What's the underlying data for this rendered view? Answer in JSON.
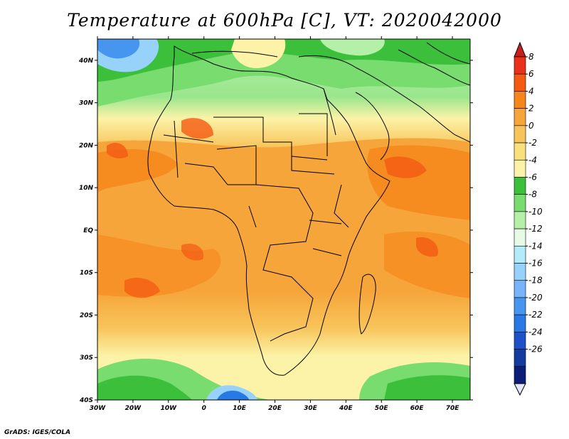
{
  "title": "Temperature at 600hPa [C], VT: 2020042000",
  "credit": "GrADS: IGES/COLA",
  "map": {
    "lon_range": [
      -30,
      75
    ],
    "lat_range": [
      -40,
      45
    ],
    "lon_ticks": [
      {
        "value": -30,
        "label": "30W"
      },
      {
        "value": -20,
        "label": "20W"
      },
      {
        "value": -10,
        "label": "10W"
      },
      {
        "value": 0,
        "label": "0"
      },
      {
        "value": 10,
        "label": "10E"
      },
      {
        "value": 20,
        "label": "20E"
      },
      {
        "value": 30,
        "label": "30E"
      },
      {
        "value": 40,
        "label": "40E"
      },
      {
        "value": 50,
        "label": "50E"
      },
      {
        "value": 60,
        "label": "60E"
      },
      {
        "value": 70,
        "label": "70E"
      }
    ],
    "lat_ticks": [
      {
        "value": 40,
        "label": "40N"
      },
      {
        "value": 30,
        "label": "30N"
      },
      {
        "value": 20,
        "label": "20N"
      },
      {
        "value": 10,
        "label": "10N"
      },
      {
        "value": 0,
        "label": "EQ"
      },
      {
        "value": -10,
        "label": "10S"
      },
      {
        "value": -20,
        "label": "20S"
      },
      {
        "value": -30,
        "label": "30S"
      },
      {
        "value": -40,
        "label": "40S"
      }
    ]
  },
  "colorbar": {
    "labels": [
      "8",
      "6",
      "4",
      "2",
      "0",
      "-2",
      "-4",
      "-6",
      "-8",
      "-10",
      "-12",
      "-14",
      "-16",
      "-18",
      "-20",
      "-22",
      "-24",
      "-26"
    ],
    "colors": [
      "#e8301a",
      "#f45a12",
      "#f6861c",
      "#f6a53a",
      "#f8c45a",
      "#fae07a",
      "#fcf3a8",
      "#3cc03c",
      "#78dc6e",
      "#b4f0a8",
      "#e6fae6",
      "#b4ebfa",
      "#96d2fa",
      "#78b4fa",
      "#4696f0",
      "#2878e6",
      "#1e50c8",
      "#143ca0",
      "#0a1e78"
    ],
    "top_color": "#c81e1e",
    "bottom_color": "#e6e6fa"
  }
}
